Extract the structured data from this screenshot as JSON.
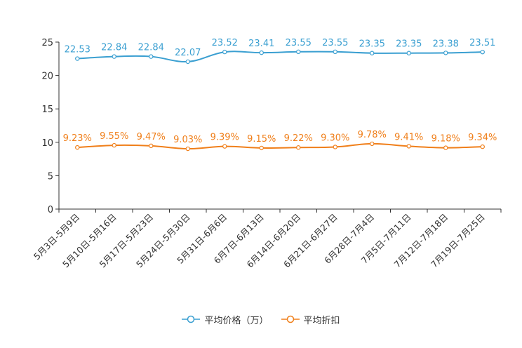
{
  "chart_data": {
    "type": "line",
    "categories": [
      "5月3日-5月9日",
      "5月10日-5月16日",
      "5月17日-5月23日",
      "5月24日-5月30日",
      "5月31日-6月6日",
      "6月7日-6月13日",
      "6月14日-6月20日",
      "6月21日-6月27日",
      "6月28日-7月4日",
      "7月5日-7月11日",
      "7月12日-7月18日",
      "7月19日-7月25日"
    ],
    "series": [
      {
        "name": "平均价格（万）",
        "color": "#3a9fd1",
        "values": [
          22.53,
          22.84,
          22.84,
          22.07,
          23.52,
          23.41,
          23.55,
          23.55,
          23.35,
          23.35,
          23.38,
          23.51
        ],
        "labels": [
          "22.53",
          "22.84",
          "22.84",
          "22.07",
          "23.52",
          "23.41",
          "23.55",
          "23.55",
          "23.35",
          "23.35",
          "23.38",
          "23.51"
        ]
      },
      {
        "name": "平均折扣",
        "color": "#f07f1a",
        "values": [
          9.23,
          9.55,
          9.47,
          9.03,
          9.39,
          9.15,
          9.22,
          9.3,
          9.78,
          9.41,
          9.18,
          9.34
        ],
        "labels": [
          "9.23%",
          "9.55%",
          "9.47%",
          "9.03%",
          "9.39%",
          "9.15%",
          "9.22%",
          "9.30%",
          "9.78%",
          "9.41%",
          "9.18%",
          "9.34%"
        ]
      }
    ],
    "yticks": [
      "0",
      "5",
      "10",
      "15",
      "20",
      "25"
    ],
    "ylim": [
      0,
      25
    ],
    "title": "",
    "xlabel": "",
    "ylabel": "",
    "legend_position": "bottom-center",
    "grid": false
  }
}
